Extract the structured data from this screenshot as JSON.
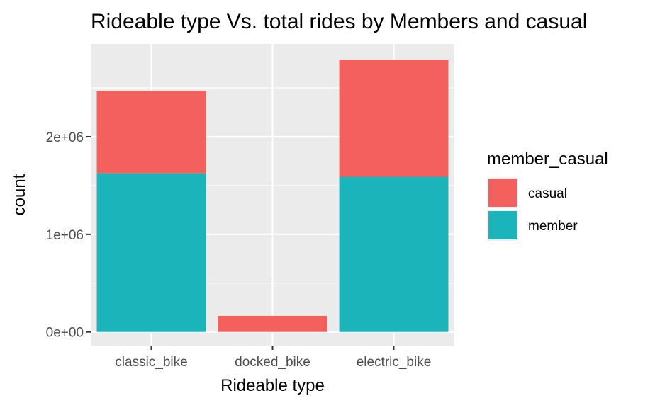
{
  "chart_data": {
    "type": "bar",
    "stacked": true,
    "title": "Rideable type Vs. total rides by Members and casual",
    "xlabel": "Rideable type",
    "ylabel": "count",
    "categories": [
      "classic_bike",
      "docked_bike",
      "electric_bike"
    ],
    "series": [
      {
        "name": "member",
        "color": "#1AB4BA",
        "values": [
          1625000,
          0,
          1590000
        ]
      },
      {
        "name": "casual",
        "color": "#F4605E",
        "values": [
          845000,
          165000,
          1200000
        ]
      }
    ],
    "ylim": [
      -140000,
      2950000
    ],
    "yticks": [
      0,
      1000000,
      2000000
    ],
    "ytick_labels": [
      "0e+00",
      "1e+06",
      "2e+06"
    ],
    "legend": {
      "title": "member_casual",
      "position": "right",
      "entries": [
        {
          "label": "casual",
          "color": "#F4605E"
        },
        {
          "label": "member",
          "color": "#1AB4BA"
        }
      ]
    },
    "grid": true,
    "panel_background": "#EBEBEB",
    "gridline_color": "#FFFFFF"
  }
}
